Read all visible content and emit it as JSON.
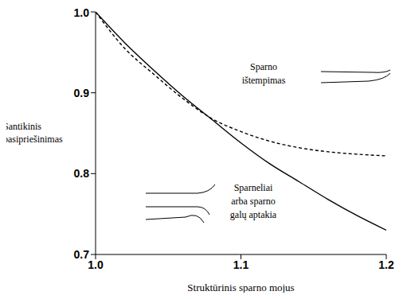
{
  "chart_data": {
    "type": "line",
    "x_label": "Struktūrinis sparno mojus",
    "y_label": "Santikinis pasipriešinimas",
    "x": [
      1.0,
      1.02,
      1.04,
      1.06,
      1.08,
      1.1,
      1.12,
      1.14,
      1.16,
      1.18,
      1.2
    ],
    "series": [
      {
        "name": "Sparno ištempimas",
        "color": "#000000",
        "line_style": "solid",
        "values": [
          1.0,
          0.962,
          0.928,
          0.896,
          0.867,
          0.838,
          0.812,
          0.79,
          0.768,
          0.748,
          0.73
        ]
      },
      {
        "name": "Sparneliai arba sparno galų aptakia",
        "color": "#000000",
        "line_style": "dashed",
        "values": [
          1.0,
          0.955,
          0.923,
          0.893,
          0.868,
          0.852,
          0.84,
          0.832,
          0.827,
          0.824,
          0.822
        ]
      }
    ],
    "xlim": [
      1.0,
      1.2
    ],
    "xticks": [
      {
        "value": 1.0,
        "label": "1.0"
      },
      {
        "value": 1.1,
        "label": "1.1"
      },
      {
        "value": 1.2,
        "label": "1.2"
      }
    ],
    "ylim": [
      0.7,
      1.0
    ],
    "yticks": [
      0.7,
      0.8,
      0.9,
      {
        "value": 1.0,
        "label": "1.0"
      }
    ],
    "grid": false
  }
}
